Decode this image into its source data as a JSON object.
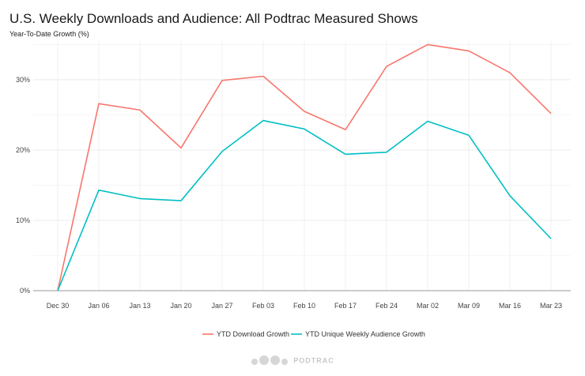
{
  "chart_data": {
    "type": "line",
    "title": "U.S. Weekly Downloads and Audience: All Podtrac Measured Shows",
    "subtitle": "Year-To-Date Growth (%)",
    "xlabel": "",
    "ylabel": "Year-To-Date Growth (%)",
    "categories": [
      "Dec 30",
      "Jan 06",
      "Jan 13",
      "Jan 20",
      "Jan 27",
      "Feb 03",
      "Feb 10",
      "Feb 17",
      "Feb 24",
      "Mar 02",
      "Mar 09",
      "Mar 16",
      "Mar 23"
    ],
    "y_ticks": [
      0,
      10,
      20,
      30
    ],
    "y_tick_labels": [
      "0%",
      "10%",
      "20%",
      "30%"
    ],
    "ylim": [
      0,
      35.5
    ],
    "grid": true,
    "legend_position": "bottom",
    "series": [
      {
        "name": "YTD Download Growth",
        "color": "#F8766D",
        "values": [
          0,
          26.6,
          25.7,
          20.3,
          29.9,
          30.5,
          25.5,
          22.9,
          31.9,
          35.0,
          34.1,
          31.0,
          25.2
        ]
      },
      {
        "name": "YTD Unique Weekly Audience Growth",
        "color": "#00BFC4",
        "values": [
          0,
          14.3,
          13.1,
          12.8,
          19.8,
          24.2,
          23.0,
          19.4,
          19.7,
          24.1,
          22.1,
          13.5,
          7.4
        ]
      }
    ]
  },
  "watermark": "PODTRAC"
}
